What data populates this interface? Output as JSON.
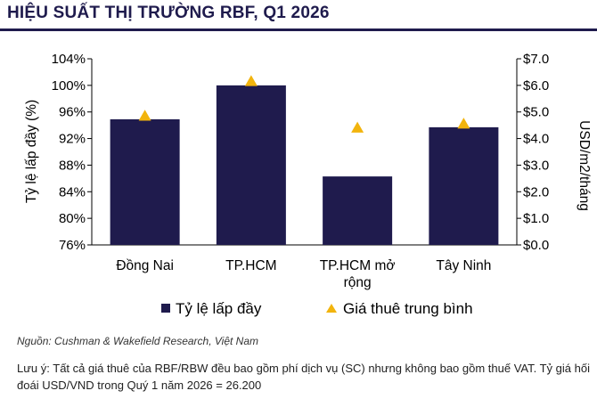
{
  "title": "HIỆU SUẤT THỊ TRƯỜNG RBF, Q1 2026",
  "source": "Nguồn: Cushman & Wakefield Research, Việt Nam",
  "note": "Lưu ý: Tất cả giá thuê của RBF/RBW đều bao gồm phí dịch vụ (SC) nhưng không bao gồm thuế VAT. Tỷ giá hối đoái USD/VND trong Quý 1 năm 2026 = 26.200",
  "colors": {
    "bar": "#1f1b4d",
    "marker": "#f2b40d",
    "title": "#1f1b4d"
  },
  "chart_data": {
    "type": "bar",
    "categories": [
      [
        "Đồng Nai"
      ],
      [
        "TP.HCM"
      ],
      [
        "TP.HCM mở",
        "rộng"
      ],
      [
        "Tây Ninh"
      ]
    ],
    "series": [
      {
        "name": "Tỷ lệ lấp đầy",
        "type": "bar",
        "axis": "left",
        "values": [
          94.9,
          100.0,
          86.3,
          93.7
        ]
      },
      {
        "name": "Giá thuê trung bình",
        "type": "scatter",
        "marker": "triangle",
        "axis": "right",
        "values": [
          4.85,
          6.15,
          4.4,
          4.55
        ]
      }
    ],
    "ylabel": "Tỷ lệ lấp đầy (%)",
    "y2label": "USD/m2/tháng",
    "ylim": [
      76,
      104
    ],
    "y2lim": [
      0,
      7
    ],
    "yticks": [
      "76%",
      "80%",
      "84%",
      "88%",
      "92%",
      "96%",
      "100%",
      "104%"
    ],
    "y2ticks": [
      "$0.0",
      "$1.0",
      "$2.0",
      "$3.0",
      "$4.0",
      "$5.0",
      "$6.0",
      "$7.0"
    ],
    "legend": "bottom",
    "grid": false
  }
}
